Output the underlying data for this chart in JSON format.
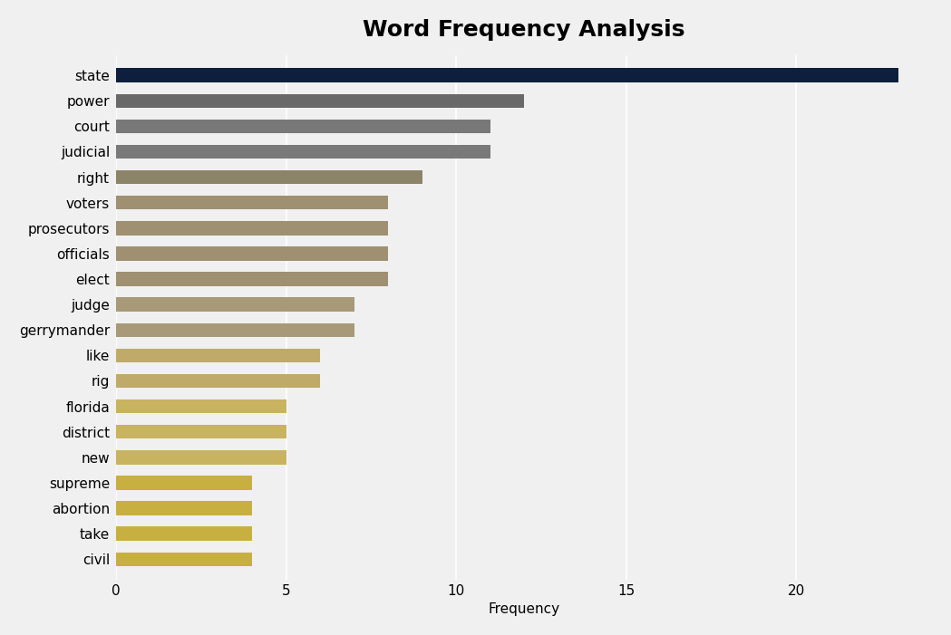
{
  "title": "Word Frequency Analysis",
  "xlabel": "Frequency",
  "categories": [
    "state",
    "power",
    "court",
    "judicial",
    "right",
    "voters",
    "prosecutors",
    "officials",
    "elect",
    "judge",
    "gerrymander",
    "like",
    "rig",
    "florida",
    "district",
    "new",
    "supreme",
    "abortion",
    "take",
    "civil"
  ],
  "values": [
    23,
    12,
    11,
    11,
    9,
    8,
    8,
    8,
    8,
    7,
    7,
    6,
    6,
    5,
    5,
    5,
    4,
    4,
    4,
    4
  ],
  "bar_colors": [
    "#0d1f3c",
    "#696969",
    "#787878",
    "#797979",
    "#8b8468",
    "#9e9071",
    "#9e9071",
    "#9e9071",
    "#9e9071",
    "#a89a78",
    "#a89a78",
    "#bfaa6a",
    "#bfaa6a",
    "#c8b460",
    "#c8b460",
    "#c8b460",
    "#c8b040",
    "#c8b040",
    "#c8b040",
    "#c8b040"
  ],
  "background_color": "#f0f0f0",
  "plot_background": "#f0f0f0",
  "title_fontsize": 18,
  "label_fontsize": 11,
  "tick_fontsize": 11,
  "xlim": [
    0,
    24
  ],
  "xticks": [
    0,
    5,
    10,
    15,
    20
  ]
}
